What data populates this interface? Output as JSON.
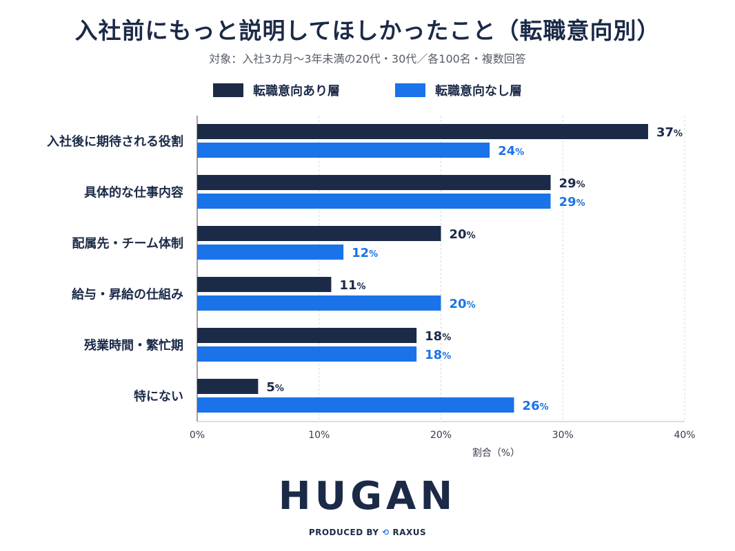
{
  "title": "入社前にもっと説明してほしかったこと（転職意向別）",
  "subtitle": "対象：入社3カ月〜3年未満の20代・30代／各100名・複数回答",
  "footer": {
    "logo": "HUGAN",
    "produced_by": "PRODUCED BY",
    "company": "RAXUS"
  },
  "colors": {
    "series1": "#1b2a47",
    "series2": "#1a73e8"
  },
  "chart_data": {
    "type": "bar",
    "orientation": "horizontal",
    "categories": [
      "入社後に期待される役割",
      "具体的な仕事内容",
      "配属先・チーム体制",
      "給与・昇給の仕組み",
      "残業時間・繁忙期",
      "特にない"
    ],
    "series": [
      {
        "name": "転職意向あり層",
        "values": [
          37,
          29,
          20,
          11,
          18,
          5
        ]
      },
      {
        "name": "転職意向なし層",
        "values": [
          24,
          29,
          12,
          20,
          18,
          26
        ]
      }
    ],
    "xlim": [
      0,
      40
    ],
    "xticks": [
      "0%",
      "10%",
      "20%",
      "30%",
      "40%"
    ],
    "xlabel": "割合（%）",
    "value_suffix": "%",
    "grid": "vertical dashed",
    "legend_position": "top"
  }
}
